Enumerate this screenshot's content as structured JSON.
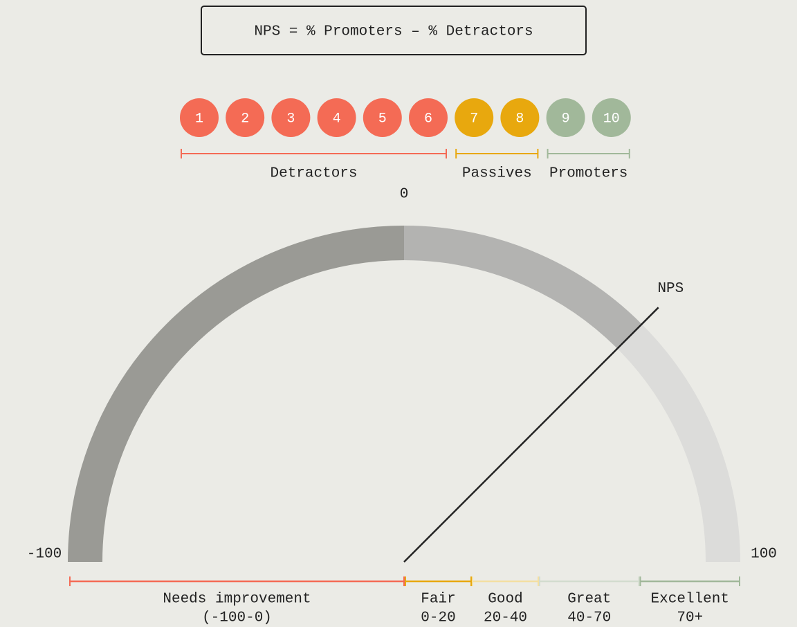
{
  "formula": "NPS = % Promoters – % Detractors",
  "groups": [
    {
      "name": "Detractors",
      "color": "#f46b55",
      "scores": [
        "1",
        "2",
        "3",
        "4",
        "5",
        "6"
      ]
    },
    {
      "name": "Passives",
      "color": "#e8a80e",
      "scores": [
        "7",
        "8"
      ]
    },
    {
      "name": "Promoters",
      "color": "#a1b89a",
      "scores": [
        "9",
        "10"
      ]
    }
  ],
  "gauge": {
    "min": -100,
    "max": 100,
    "ticks": [
      -100,
      0,
      100
    ],
    "value": 50,
    "needle_label": "NPS",
    "colors": {
      "negative": "#9a9a95",
      "score": "#b3b3b1",
      "rest": "#dcdcda"
    }
  },
  "ranges": [
    {
      "name": "Needs improvement",
      "span": "(-100-0)",
      "from": -100,
      "to": 0,
      "color": "#f46b55"
    },
    {
      "name": "Fair",
      "span": "0-20",
      "from": 0,
      "to": 20,
      "color": "#e8a80e"
    },
    {
      "name": "Good",
      "span": "20-40",
      "from": 20,
      "to": 40,
      "color": "#f3dfa2"
    },
    {
      "name": "Great",
      "span": "40-70",
      "from": 40,
      "to": 70,
      "color": "#d3dccf"
    },
    {
      "name": "Excellent",
      "span": "70+",
      "from": 70,
      "to": 100,
      "color": "#a1b89a"
    }
  ]
}
